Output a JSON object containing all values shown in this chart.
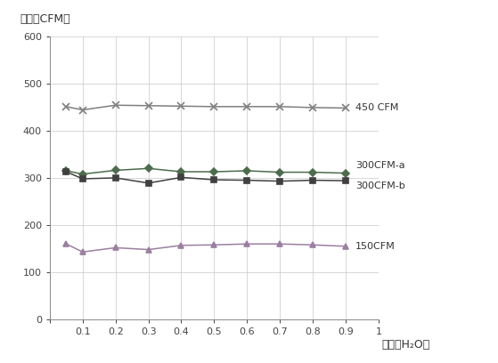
{
  "title_y": "风量（CFM）",
  "title_x": "静压（H₂O）",
  "x_values": [
    0.05,
    0.1,
    0.2,
    0.3,
    0.4,
    0.5,
    0.6,
    0.7,
    0.8,
    0.9
  ],
  "series": [
    {
      "label": "450 CFM",
      "color": "#7f7f7f",
      "marker": "x",
      "markersize": 6,
      "linewidth": 1.1,
      "y_values": [
        451,
        444,
        454,
        453,
        452,
        451,
        451,
        451,
        449,
        448
      ]
    },
    {
      "label": "300CFM-a",
      "color": "#4d6b4d",
      "marker": "D",
      "markersize": 4,
      "linewidth": 1.1,
      "y_values": [
        315,
        308,
        316,
        320,
        313,
        313,
        315,
        312,
        312,
        310
      ]
    },
    {
      "label": "300CFM-b",
      "color": "#404040",
      "marker": "s",
      "markersize": 4,
      "linewidth": 1.1,
      "y_values": [
        313,
        298,
        300,
        289,
        301,
        296,
        295,
        293,
        295,
        294
      ]
    },
    {
      "label": "150CFM",
      "color": "#9b7fa0",
      "marker": "^",
      "markersize": 5,
      "linewidth": 1.1,
      "y_values": [
        160,
        143,
        152,
        148,
        157,
        158,
        160,
        160,
        158,
        155
      ]
    }
  ],
  "xlim": [
    0,
    1
  ],
  "ylim": [
    0,
    600
  ],
  "xticks": [
    0,
    0.1,
    0.2,
    0.3,
    0.4,
    0.5,
    0.6,
    0.7,
    0.8,
    0.9,
    1
  ],
  "yticks": [
    0,
    100,
    200,
    300,
    400,
    500,
    600
  ],
  "background_color": "#ffffff",
  "grid_color": "#c8c8c8",
  "legend_annotations": [
    {
      "label": "450 CFM",
      "x_data": 0.9,
      "y_data": 448
    },
    {
      "label": "300CFM-a",
      "x_data": 0.9,
      "y_data": 310
    },
    {
      "label": "300CFM-b",
      "x_data": 0.9,
      "y_data": 294
    },
    {
      "label": "150CFM",
      "x_data": 0.9,
      "y_data": 155
    }
  ]
}
